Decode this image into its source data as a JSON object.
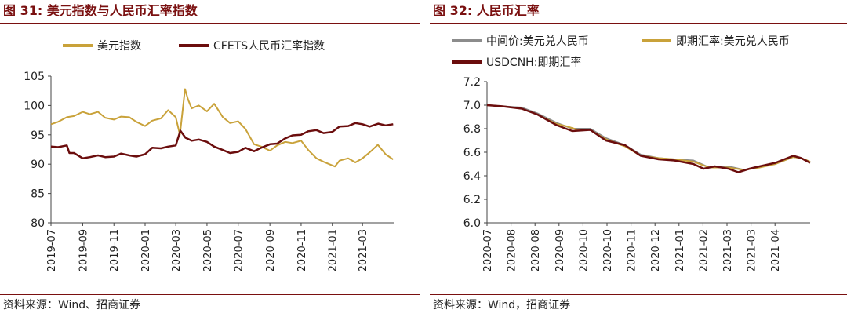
{
  "charts": [
    {
      "title": "图 31:  美元指数与人民币汇率指数",
      "source": "资料来源：Wind、招商证券",
      "chart_data": {
        "type": "line",
        "title": "图 31:  美元指数与人民币汇率指数",
        "ylim": [
          80,
          105
        ],
        "yticks": [
          80,
          85,
          90,
          95,
          100,
          105
        ],
        "x_range": [
          "2019-07",
          "2021-05"
        ],
        "xticks": [
          "2019-07",
          "2019-09",
          "2019-11",
          "2020-01",
          "2020-03",
          "2020-05",
          "2020-07",
          "2020-09",
          "2020-11",
          "2021-01",
          "2021-03"
        ],
        "legend_position": "top",
        "series": [
          {
            "name": "美元指数",
            "color": "#c9a23a",
            "points": [
              [
                "2019-07-01",
                96.8
              ],
              [
                "2019-07-15",
                97.2
              ],
              [
                "2019-08-01",
                98.0
              ],
              [
                "2019-08-15",
                98.2
              ],
              [
                "2019-09-01",
                98.9
              ],
              [
                "2019-09-15",
                98.5
              ],
              [
                "2019-10-01",
                98.9
              ],
              [
                "2019-10-15",
                97.9
              ],
              [
                "2019-11-01",
                97.6
              ],
              [
                "2019-11-15",
                98.1
              ],
              [
                "2019-12-01",
                98.0
              ],
              [
                "2019-12-15",
                97.2
              ],
              [
                "2020-01-01",
                96.5
              ],
              [
                "2020-01-15",
                97.4
              ],
              [
                "2020-02-01",
                97.8
              ],
              [
                "2020-02-15",
                99.2
              ],
              [
                "2020-03-01",
                98.0
              ],
              [
                "2020-03-09",
                95.0
              ],
              [
                "2020-03-19",
                102.8
              ],
              [
                "2020-03-25",
                101.0
              ],
              [
                "2020-04-01",
                99.5
              ],
              [
                "2020-04-15",
                100.0
              ],
              [
                "2020-05-01",
                99.0
              ],
              [
                "2020-05-15",
                100.3
              ],
              [
                "2020-06-01",
                98.0
              ],
              [
                "2020-06-15",
                97.0
              ],
              [
                "2020-07-01",
                97.3
              ],
              [
                "2020-07-15",
                96.0
              ],
              [
                "2020-08-01",
                93.4
              ],
              [
                "2020-08-15",
                93.0
              ],
              [
                "2020-09-01",
                92.3
              ],
              [
                "2020-09-15",
                93.2
              ],
              [
                "2020-10-01",
                93.8
              ],
              [
                "2020-10-15",
                93.6
              ],
              [
                "2020-11-01",
                94.0
              ],
              [
                "2020-11-15",
                92.4
              ],
              [
                "2020-12-01",
                91.0
              ],
              [
                "2020-12-15",
                90.4
              ],
              [
                "2021-01-06",
                89.6
              ],
              [
                "2021-01-15",
                90.6
              ],
              [
                "2021-02-01",
                91.0
              ],
              [
                "2021-02-15",
                90.3
              ],
              [
                "2021-03-01",
                91.0
              ],
              [
                "2021-03-15",
                92.0
              ],
              [
                "2021-03-31",
                93.3
              ],
              [
                "2021-04-15",
                91.7
              ],
              [
                "2021-04-30",
                90.8
              ]
            ]
          },
          {
            "name": "CFETS人民币汇率指数",
            "color": "#6b0d0d",
            "points": [
              [
                "2019-07-01",
                93.0
              ],
              [
                "2019-07-15",
                92.9
              ],
              [
                "2019-08-01",
                93.2
              ],
              [
                "2019-08-06",
                91.9
              ],
              [
                "2019-08-15",
                91.9
              ],
              [
                "2019-09-01",
                91.0
              ],
              [
                "2019-09-15",
                91.2
              ],
              [
                "2019-10-01",
                91.5
              ],
              [
                "2019-10-15",
                91.2
              ],
              [
                "2019-11-01",
                91.3
              ],
              [
                "2019-11-15",
                91.8
              ],
              [
                "2019-12-01",
                91.5
              ],
              [
                "2019-12-15",
                91.3
              ],
              [
                "2020-01-01",
                91.7
              ],
              [
                "2020-01-15",
                92.8
              ],
              [
                "2020-02-01",
                92.7
              ],
              [
                "2020-02-15",
                93.0
              ],
              [
                "2020-03-01",
                93.2
              ],
              [
                "2020-03-10",
                95.7
              ],
              [
                "2020-03-20",
                94.5
              ],
              [
                "2020-04-01",
                94.0
              ],
              [
                "2020-04-15",
                94.2
              ],
              [
                "2020-05-01",
                93.8
              ],
              [
                "2020-05-15",
                93.0
              ],
              [
                "2020-06-01",
                92.4
              ],
              [
                "2020-06-15",
                91.9
              ],
              [
                "2020-07-01",
                92.1
              ],
              [
                "2020-07-15",
                92.8
              ],
              [
                "2020-08-01",
                92.2
              ],
              [
                "2020-08-15",
                92.8
              ],
              [
                "2020-09-01",
                93.4
              ],
              [
                "2020-09-15",
                93.5
              ],
              [
                "2020-10-01",
                94.4
              ],
              [
                "2020-10-15",
                94.9
              ],
              [
                "2020-11-01",
                95.0
              ],
              [
                "2020-11-15",
                95.6
              ],
              [
                "2020-12-01",
                95.8
              ],
              [
                "2020-12-15",
                95.3
              ],
              [
                "2021-01-01",
                95.5
              ],
              [
                "2021-01-15",
                96.4
              ],
              [
                "2021-02-01",
                96.5
              ],
              [
                "2021-02-15",
                97.0
              ],
              [
                "2021-03-01",
                96.8
              ],
              [
                "2021-03-15",
                96.4
              ],
              [
                "2021-04-01",
                96.9
              ],
              [
                "2021-04-15",
                96.6
              ],
              [
                "2021-04-30",
                96.8
              ]
            ]
          }
        ]
      }
    },
    {
      "title": "图 32:  人民币汇率",
      "source": "资料来源：Wind，招商证券",
      "chart_data": {
        "type": "line",
        "title": "图 32:  人民币汇率",
        "ylim": [
          6.0,
          7.2
        ],
        "yticks": [
          6.0,
          6.2,
          6.4,
          6.6,
          6.8,
          7.0,
          7.2
        ],
        "x_range": [
          "2020-07-01",
          "2021-04-15"
        ],
        "xticks": [
          "2020-07",
          "2020-08",
          "2020-08",
          "2020-09",
          "2020-10",
          "2020-10",
          "2020-11",
          "2020-12",
          "2021-01",
          "2021-02",
          "2021-03",
          "2021-03",
          "2021-04"
        ],
        "legend_position": "top",
        "series": [
          {
            "name": "中间价:美元兑人民币",
            "color": "#8c8c8c",
            "points": [
              [
                "2020-07-01",
                7.0
              ],
              [
                "2020-07-15",
                6.99
              ],
              [
                "2020-08-01",
                6.98
              ],
              [
                "2020-08-15",
                6.93
              ],
              [
                "2020-09-01",
                6.85
              ],
              [
                "2020-09-15",
                6.8
              ],
              [
                "2020-10-01",
                6.8
              ],
              [
                "2020-10-15",
                6.72
              ],
              [
                "2020-11-01",
                6.66
              ],
              [
                "2020-11-15",
                6.58
              ],
              [
                "2020-12-01",
                6.55
              ],
              [
                "2020-12-15",
                6.54
              ],
              [
                "2021-01-01",
                6.53
              ],
              [
                "2021-01-15",
                6.47
              ],
              [
                "2021-02-01",
                6.48
              ],
              [
                "2021-02-15",
                6.45
              ],
              [
                "2021-03-01",
                6.48
              ],
              [
                "2021-03-15",
                6.5
              ],
              [
                "2021-03-31",
                6.56
              ],
              [
                "2021-04-07",
                6.55
              ],
              [
                "2021-04-15",
                6.52
              ]
            ]
          },
          {
            "name": "即期汇率:美元兑人民币",
            "color": "#c9a23a",
            "points": [
              [
                "2020-07-01",
                7.0
              ],
              [
                "2020-07-15",
                6.99
              ],
              [
                "2020-08-01",
                6.97
              ],
              [
                "2020-08-15",
                6.92
              ],
              [
                "2020-09-01",
                6.84
              ],
              [
                "2020-09-10",
                6.82
              ],
              [
                "2020-09-20",
                6.79
              ],
              [
                "2020-10-01",
                6.79
              ],
              [
                "2020-10-15",
                6.71
              ],
              [
                "2020-11-01",
                6.65
              ],
              [
                "2020-11-15",
                6.57
              ],
              [
                "2020-12-01",
                6.55
              ],
              [
                "2020-12-15",
                6.54
              ],
              [
                "2021-01-01",
                6.52
              ],
              [
                "2021-01-15",
                6.47
              ],
              [
                "2021-02-01",
                6.47
              ],
              [
                "2021-02-15",
                6.45
              ],
              [
                "2021-03-01",
                6.47
              ],
              [
                "2021-03-15",
                6.5
              ],
              [
                "2021-03-31",
                6.56
              ],
              [
                "2021-04-07",
                6.55
              ],
              [
                "2021-04-15",
                6.52
              ]
            ]
          },
          {
            "name": "USDCNH:即期汇率",
            "color": "#6b0d0d",
            "points": [
              [
                "2020-07-01",
                7.0
              ],
              [
                "2020-07-15",
                6.99
              ],
              [
                "2020-08-01",
                6.97
              ],
              [
                "2020-08-15",
                6.92
              ],
              [
                "2020-09-01",
                6.83
              ],
              [
                "2020-09-15",
                6.78
              ],
              [
                "2020-10-01",
                6.79
              ],
              [
                "2020-10-15",
                6.7
              ],
              [
                "2020-11-01",
                6.66
              ],
              [
                "2020-11-15",
                6.57
              ],
              [
                "2020-12-01",
                6.54
              ],
              [
                "2020-12-15",
                6.53
              ],
              [
                "2021-01-01",
                6.5
              ],
              [
                "2021-01-10",
                6.46
              ],
              [
                "2021-01-20",
                6.48
              ],
              [
                "2021-02-01",
                6.46
              ],
              [
                "2021-02-10",
                6.43
              ],
              [
                "2021-02-20",
                6.46
              ],
              [
                "2021-03-01",
                6.48
              ],
              [
                "2021-03-15",
                6.51
              ],
              [
                "2021-03-31",
                6.57
              ],
              [
                "2021-04-07",
                6.55
              ],
              [
                "2021-04-15",
                6.51
              ]
            ]
          }
        ]
      }
    }
  ]
}
